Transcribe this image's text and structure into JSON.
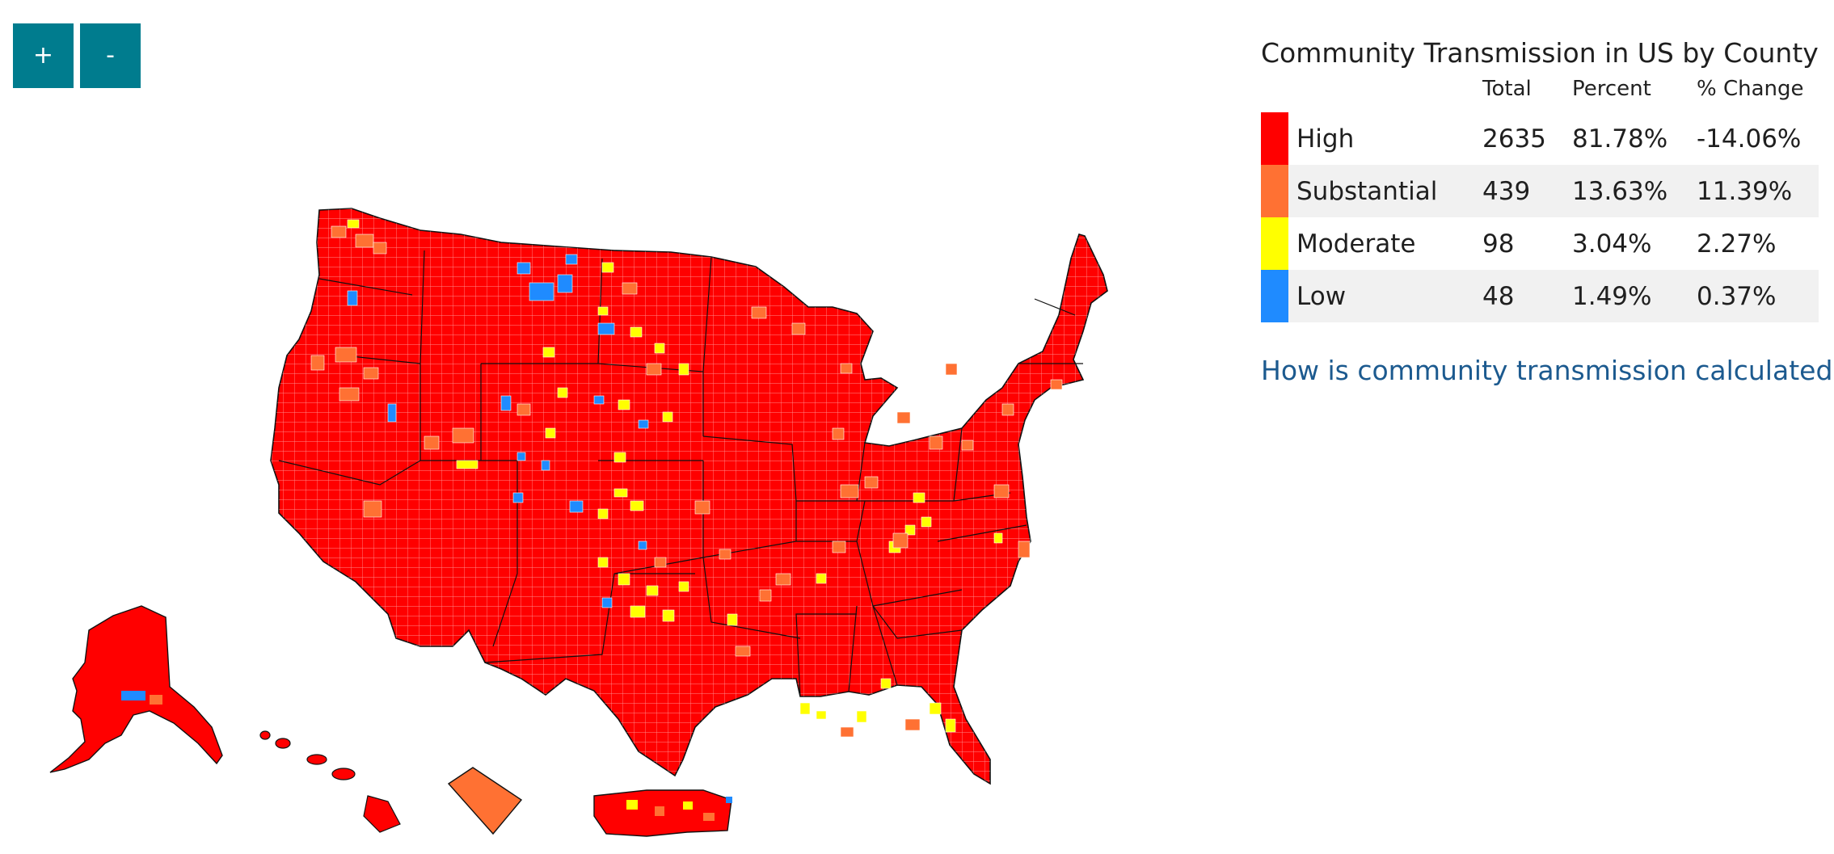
{
  "zoom": {
    "in_label": "+",
    "out_label": "-"
  },
  "legend": {
    "title": "Community Transmission in US by County",
    "headers": {
      "total": "Total",
      "percent": "Percent",
      "change": "% Change"
    },
    "rows": [
      {
        "level": "High",
        "total": "2635",
        "percent": "81.78%",
        "change": "-14.06%",
        "color": "#ff0000"
      },
      {
        "level": "Substantial",
        "total": "439",
        "percent": "13.63%",
        "change": "11.39%",
        "color": "#ff7133"
      },
      {
        "level": "Moderate",
        "total": "98",
        "percent": "3.04%",
        "change": "2.27%",
        "color": "#ffff00"
      },
      {
        "level": "Low",
        "total": "48",
        "percent": "1.49%",
        "change": "0.37%",
        "color": "#1f8bff"
      }
    ]
  },
  "link": {
    "label": "How is community transmission calculated?"
  },
  "map": {
    "regions": [
      "contiguous-us",
      "alaska",
      "hawaii",
      "washington-dc",
      "puerto-rico"
    ],
    "base_level": "High",
    "dc_level": "Substantial"
  }
}
